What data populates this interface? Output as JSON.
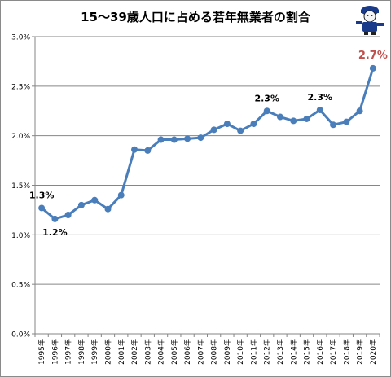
{
  "chart_data": {
    "type": "line",
    "title": "15〜39歳人口に占める若年無業者の割合",
    "xlabel": "",
    "ylabel": "",
    "categories": [
      "1995年",
      "1996年",
      "1997年",
      "1998年",
      "1999年",
      "2000年",
      "2001年",
      "2002年",
      "2003年",
      "2004年",
      "2005年",
      "2006年",
      "2007年",
      "2008年",
      "2009年",
      "2010年",
      "2011年",
      "2012年",
      "2013年",
      "2014年",
      "2015年",
      "2016年",
      "2017年",
      "2018年",
      "2019年",
      "2020年"
    ],
    "series": [
      {
        "values": [
          1.27,
          1.16,
          1.2,
          1.3,
          1.35,
          1.26,
          1.4,
          1.86,
          1.85,
          1.96,
          1.96,
          1.97,
          1.98,
          2.06,
          2.12,
          2.05,
          2.12,
          2.25,
          2.19,
          2.15,
          2.17,
          2.26,
          2.11,
          2.14,
          2.25,
          2.68
        ]
      }
    ],
    "ylim": [
      0,
      3.0
    ],
    "yticks": [
      "0.0%",
      "0.5%",
      "1.0%",
      "1.5%",
      "2.0%",
      "2.5%",
      "3.0%"
    ],
    "ytick_values": [
      0,
      0.5,
      1.0,
      1.5,
      2.0,
      2.5,
      3.0
    ],
    "grid": true,
    "line_color": "#4a7ebb",
    "annotations": [
      {
        "index": 0,
        "text": "1.3%",
        "position": "above",
        "color": "#000000"
      },
      {
        "index": 1,
        "text": "1.2%",
        "position": "below",
        "color": "#000000"
      },
      {
        "index": 17,
        "text": "2.3%",
        "position": "above",
        "color": "#000000"
      },
      {
        "index": 21,
        "text": "2.3%",
        "position": "above",
        "color": "#000000"
      },
      {
        "index": 25,
        "text": "2.7%",
        "position": "above",
        "color": "#c0504d"
      }
    ]
  },
  "mascot": {
    "icon": "mascot-character-icon"
  }
}
